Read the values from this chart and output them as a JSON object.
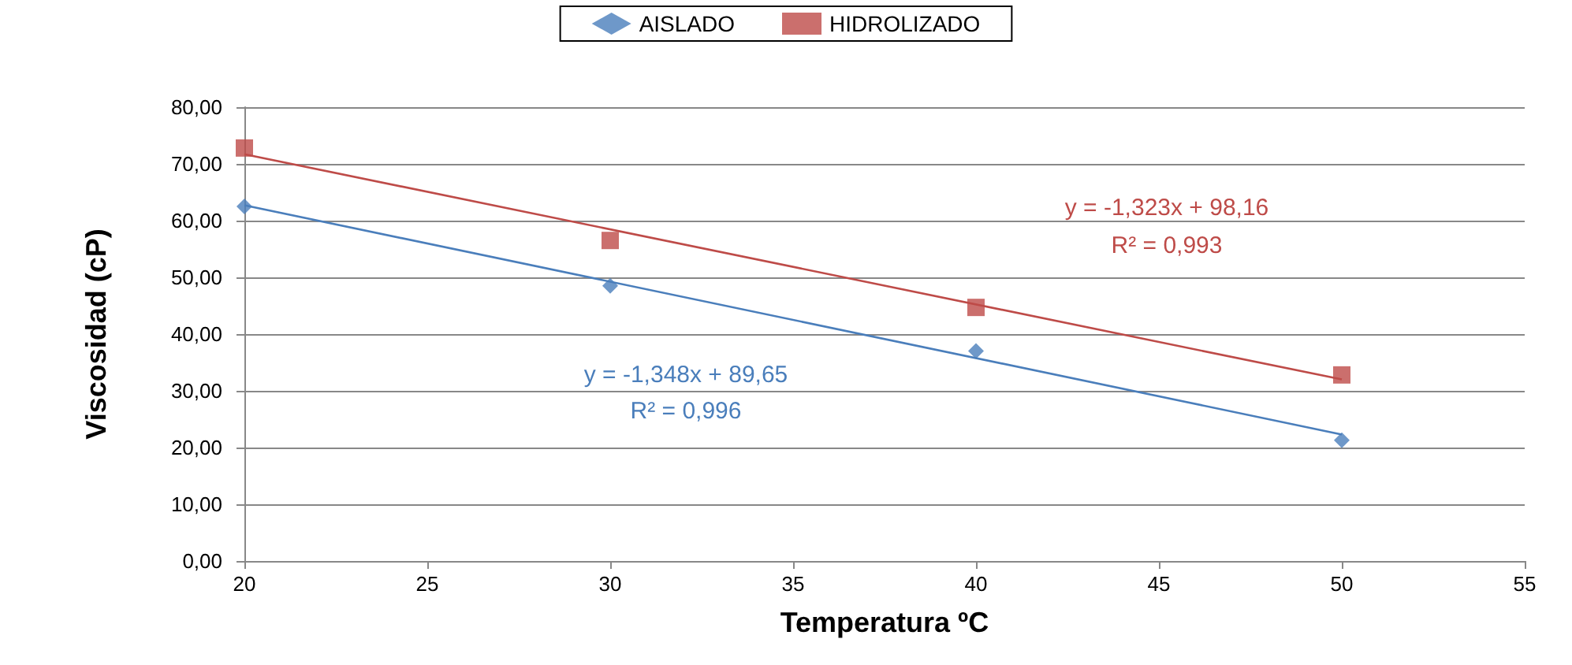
{
  "chart_data": {
    "type": "scatter",
    "xlabel": "Temperatura ºC",
    "ylabel": "Viscosidad (cP)",
    "xlim": [
      20,
      55
    ],
    "xticks": [
      20,
      25,
      30,
      35,
      40,
      45,
      50,
      55
    ],
    "ylim": [
      0,
      80
    ],
    "yticks": [
      {
        "value": 0,
        "label": "0,00"
      },
      {
        "value": 10,
        "label": "10,00"
      },
      {
        "value": 20,
        "label": "20,00"
      },
      {
        "value": 30,
        "label": "30,00"
      },
      {
        "value": 40,
        "label": "40,00"
      },
      {
        "value": 50,
        "label": "50,00"
      },
      {
        "value": 60,
        "label": "60,00"
      },
      {
        "value": 70,
        "label": "70,00"
      },
      {
        "value": 80,
        "label": "80,00"
      }
    ],
    "grid": "y",
    "legend": "top",
    "series": [
      {
        "name": "AISLADO",
        "color": "#4a7ebb",
        "marker": "diamond",
        "x": [
          20,
          30,
          40,
          50
        ],
        "values": [
          62.5,
          48.5,
          37,
          21.3
        ]
      },
      {
        "name": "HIDROLIZADO",
        "color": "#be4b48",
        "marker": "square",
        "x": [
          20,
          30,
          40,
          50
        ],
        "values": [
          72.8,
          56.5,
          44.7,
          32.8
        ]
      },
      {
        "type": "line",
        "color": "#4a7ebb",
        "marker": "none",
        "x": [
          20,
          50
        ],
        "values": [
          62.7,
          22.3
        ]
      },
      {
        "type": "line",
        "color": "#be4b48",
        "marker": "none",
        "x": [
          20,
          50
        ],
        "values": [
          71.7,
          32.0
        ]
      }
    ],
    "annotations": [
      "y = -1,323x + 98,16",
      "R² = 0,993",
      "y = -1,348x + 89,65",
      "R² = 0,996"
    ]
  }
}
